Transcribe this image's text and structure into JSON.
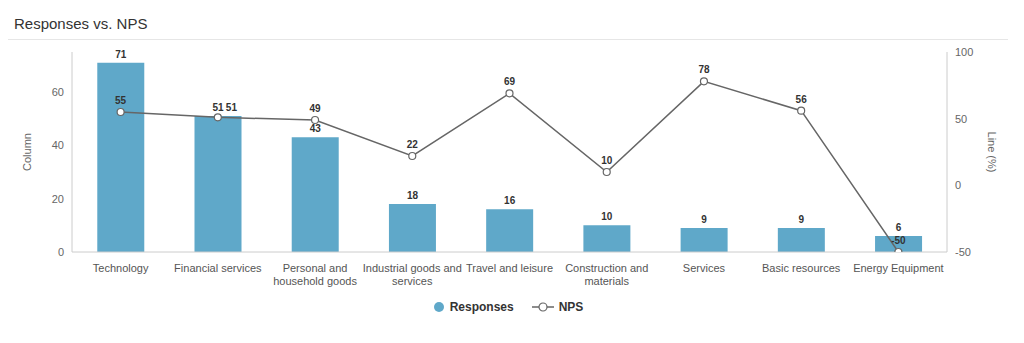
{
  "chart_data": {
    "type": "bar",
    "title": "Responses vs. NPS",
    "categories": [
      "Technology",
      "Financial services",
      "Personal and household goods",
      "Industrial goods and services",
      "Travel and leisure",
      "Construction and materials",
      "Services",
      "Basic resources",
      "Energy Equipment"
    ],
    "series": [
      {
        "name": "Responses",
        "type": "bar",
        "color": "#5fa8c9",
        "values": [
          71,
          51,
          43,
          18,
          16,
          10,
          9,
          9,
          6
        ]
      },
      {
        "name": "NPS",
        "type": "line",
        "color": "#666666",
        "marker": "circle",
        "axis": "y2",
        "values": [
          55,
          51,
          49,
          22,
          69,
          10,
          78,
          56,
          -50
        ]
      }
    ],
    "y_label": "Column",
    "y2_label": "Line (%)",
    "ylim": [
      0,
      75
    ],
    "yticks": [
      0,
      20,
      40,
      60
    ],
    "y2lim": [
      -50,
      100
    ],
    "y2ticks": [
      -50,
      0,
      50,
      100
    ],
    "data_labels": true,
    "legend": "bottom",
    "grid": false
  }
}
